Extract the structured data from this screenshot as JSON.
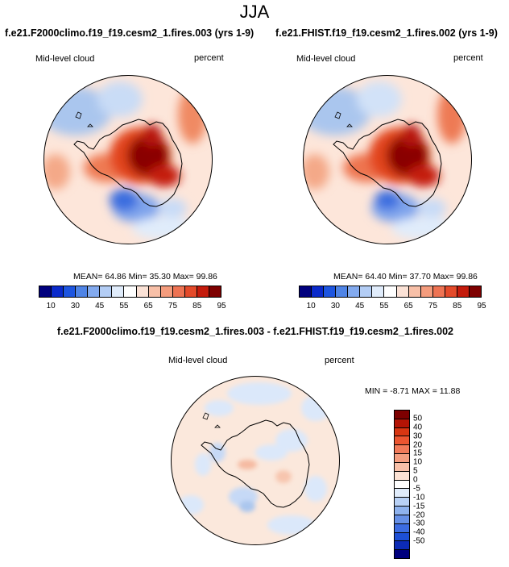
{
  "season": "JJA",
  "panels": [
    {
      "title": "f.e21.F2000climo.f19_f19.cesm2_1.fires.003 (yrs 1-9)",
      "left_label": "Mid-level cloud",
      "right_label": "percent",
      "stats": "MEAN=  64.86  Min=  35.30  Max=  99.86"
    },
    {
      "title": "f.e21.FHIST.f19_f19.cesm2_1.fires.002 (yrs 1-9)",
      "left_label": "Mid-level cloud",
      "right_label": "percent",
      "stats": "MEAN=  64.40  Min=  37.70  Max=  99.86"
    }
  ],
  "diff": {
    "title": "f.e21.F2000climo.f19_f19.cesm2_1.fires.003 - f.e21.FHIST.f19_f19.cesm2_1.fires.002",
    "left_label": "Mid-level cloud",
    "right_label": "percent",
    "stats": "MIN =  -8.71  MAX =  11.88"
  },
  "colorbar_abs": {
    "colors": [
      "#00007e",
      "#0a2acb",
      "#1d55e0",
      "#4f84e6",
      "#83aaee",
      "#b3cdf5",
      "#e0ecfb",
      "#ffffff",
      "#fbe2d6",
      "#f8c0a8",
      "#f49c7d",
      "#ee7353",
      "#e44a2a",
      "#c41b0c",
      "#7e0000"
    ],
    "tick_labels": [
      "10",
      "30",
      "45",
      "55",
      "65",
      "75",
      "85",
      "95"
    ]
  },
  "colorbar_diff": {
    "colors": [
      "#7e0000",
      "#b41405",
      "#d83612",
      "#ec5530",
      "#f27a59",
      "#f59e80",
      "#f8c0a8",
      "#fce2d4",
      "#ffffff",
      "#e0ecfb",
      "#b8d1f6",
      "#8eb2ee",
      "#6690e7",
      "#3c6ce2",
      "#1d4fd6",
      "#0c2bb6",
      "#00007e"
    ],
    "tick_labels": [
      "50",
      "40",
      "30",
      "20",
      "15",
      "10",
      "5",
      "0",
      "-5",
      "-10",
      "-15",
      "-20",
      "-30",
      "-40",
      "-50"
    ]
  }
}
